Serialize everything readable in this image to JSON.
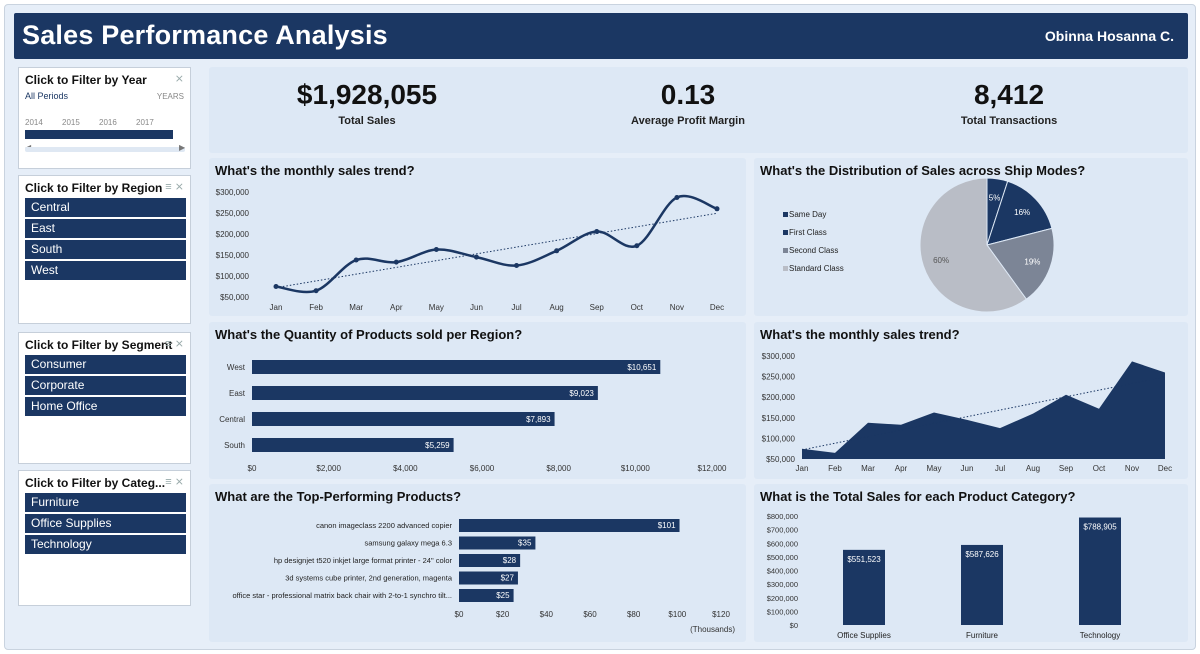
{
  "header": {
    "title": "Sales Performance Analysis",
    "author": "Obinna Hosanna C."
  },
  "slicers": {
    "year": {
      "title": "Click to Filter by Year",
      "period": "All Periods",
      "unit": "YEARS",
      "years": [
        "2014",
        "2015",
        "2016",
        "2017"
      ]
    },
    "region": {
      "title": "Click to Filter by Region",
      "items": [
        "Central",
        "East",
        "South",
        "West"
      ]
    },
    "segment": {
      "title": "Click to Filter by Segment",
      "items": [
        "Consumer",
        "Corporate",
        "Home Office"
      ]
    },
    "category": {
      "title": "Click to Filter by Categ...",
      "items": [
        "Furniture",
        "Office Supplies",
        "Technology"
      ]
    }
  },
  "kpis": [
    {
      "value": "$1,928,055",
      "label": "Total Sales"
    },
    {
      "value": "0.13",
      "label": "Average Profit Margin"
    },
    {
      "value": "8,412",
      "label": "Total Transactions"
    }
  ],
  "chart_data": [
    {
      "type": "line",
      "title": "What's the monthly sales trend?",
      "categories": [
        "Jan",
        "Feb",
        "Mar",
        "Apr",
        "May",
        "Jun",
        "Jul",
        "Aug",
        "Sep",
        "Oct",
        "Nov",
        "Dec"
      ],
      "values": [
        75000,
        65000,
        138000,
        133000,
        163000,
        145000,
        125000,
        160000,
        206000,
        172000,
        287000,
        260000
      ],
      "ylim": [
        50000,
        300000
      ],
      "yticks": [
        "$50,000",
        "$100,000",
        "$150,000",
        "$200,000",
        "$250,000",
        "$300,000"
      ],
      "trendline": true,
      "color": "#1b3763"
    },
    {
      "type": "pie",
      "title": "What's the Distribution of Sales across Ship Modes?",
      "categories": [
        "Same Day",
        "First Class",
        "Second Class",
        "Standard Class"
      ],
      "values": [
        5,
        16,
        19,
        60
      ],
      "labels": [
        "5%",
        "16%",
        "19%",
        "60%"
      ],
      "colors": [
        "#1b3763",
        "#1b3763",
        "#7c8596",
        "#b9bdc6"
      ]
    },
    {
      "type": "bar",
      "title": "What's the Quantity of Products sold per Region?",
      "categories": [
        "West",
        "East",
        "Central",
        "South"
      ],
      "values": [
        10651,
        9023,
        7893,
        5259
      ],
      "labels": [
        "$10,651",
        "$9,023",
        "$7,893",
        "$5,259"
      ],
      "xlim": [
        0,
        12000
      ],
      "xticks": [
        "$0",
        "$2,000",
        "$4,000",
        "$6,000",
        "$8,000",
        "$10,000",
        "$12,000"
      ],
      "color": "#1b3763"
    },
    {
      "type": "area",
      "title": "What's the monthly sales trend?",
      "categories": [
        "Jan",
        "Feb",
        "Mar",
        "Apr",
        "May",
        "Jun",
        "Jul",
        "Aug",
        "Sep",
        "Oct",
        "Nov",
        "Dec"
      ],
      "values": [
        75000,
        65000,
        138000,
        133000,
        163000,
        145000,
        125000,
        160000,
        206000,
        172000,
        287000,
        260000
      ],
      "ylim": [
        50000,
        300000
      ],
      "yticks": [
        "$50,000",
        "$100,000",
        "$150,000",
        "$200,000",
        "$250,000",
        "$300,000"
      ],
      "trendline": true,
      "color": "#1b3763"
    },
    {
      "type": "bar",
      "title": "What are the Top-Performing Products?",
      "categories": [
        "canon imageclass 2200 advanced copier",
        "samsung galaxy mega 6.3",
        "hp designjet t520 inkjet large format printer - 24\" color",
        "3d systems cube printer, 2nd generation, magenta",
        "office star - professional matrix back chair with 2-to-1 synchro tilt..."
      ],
      "values": [
        101,
        35,
        28,
        27,
        25
      ],
      "labels": [
        "$101",
        "$35",
        "$28",
        "$27",
        "$25"
      ],
      "xlim": [
        0,
        120
      ],
      "xticks": [
        "$0",
        "$20",
        "$40",
        "$60",
        "$80",
        "$100",
        "$120"
      ],
      "xlabel": "(Thousands)",
      "color": "#1b3763"
    },
    {
      "type": "bar",
      "title": "What is the Total Sales for each Product Category?",
      "categories": [
        "Office Supplies",
        "Furniture",
        "Technology"
      ],
      "values": [
        551523,
        587626,
        788905
      ],
      "labels": [
        "$551,523",
        "$587,626",
        "$788,905"
      ],
      "ylim": [
        0,
        800000
      ],
      "yticks": [
        "$0",
        "$100,000",
        "$200,000",
        "$300,000",
        "$400,000",
        "$500,000",
        "$600,000",
        "$700,000",
        "$800,000"
      ],
      "color": "#1b3763"
    }
  ]
}
